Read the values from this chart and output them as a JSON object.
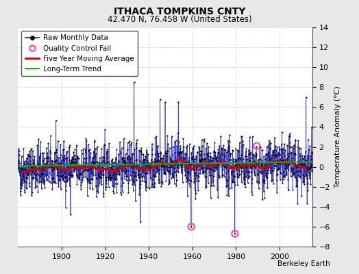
{
  "title": "ITHACA TOMPKINS CNTY",
  "subtitle": "42.470 N, 76.458 W (United States)",
  "ylabel": "Temperature Anomaly (°C)",
  "credit": "Berkeley Earth",
  "xlim": [
    1880,
    2015
  ],
  "ylim": [
    -8,
    14
  ],
  "yticks": [
    -8,
    -6,
    -4,
    -2,
    0,
    2,
    4,
    6,
    8,
    10,
    12,
    14
  ],
  "xticks": [
    1900,
    1920,
    1940,
    1960,
    1980,
    2000
  ],
  "bg_color": "#e8e8e8",
  "plot_bg_color": "#ffffff",
  "raw_line_color": "#2222bb",
  "raw_stem_color": "#6666dd",
  "raw_marker_color": "#000000",
  "moving_avg_color": "#cc0000",
  "trend_color": "#00bb00",
  "qc_fail_color": "#ff44aa",
  "seed": 42,
  "n_years": 135,
  "start_year": 1880,
  "trend_slope": 0.003,
  "trend_intercept": 0.35,
  "qc_fail_points": [
    {
      "year": 1959.5,
      "value": -6.0
    },
    {
      "year": 1979.5,
      "value": -6.7
    },
    {
      "year": 1989.5,
      "value": 2.1
    }
  ],
  "moving_avg_window": 60,
  "noise_std": 1.6,
  "title_fontsize": 10,
  "subtitle_fontsize": 8.5,
  "tick_fontsize": 8,
  "legend_fontsize": 7.5,
  "credit_fontsize": 7.5
}
